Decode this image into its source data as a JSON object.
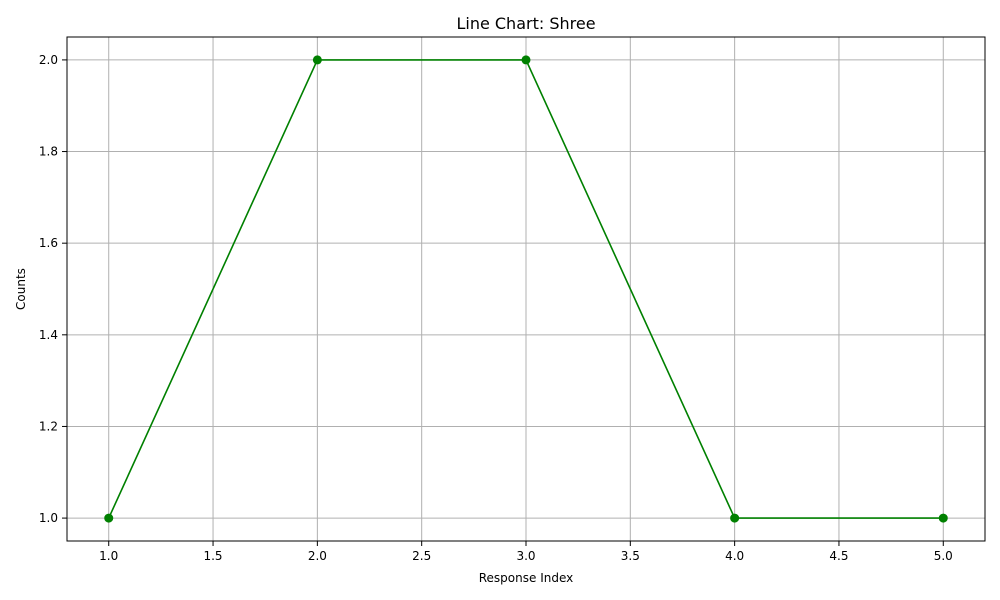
{
  "chart_data": {
    "type": "line",
    "title": "Line Chart: Shree",
    "xlabel": "Response Index",
    "ylabel": "Counts",
    "x": [
      1,
      2,
      3,
      4,
      5
    ],
    "series": [
      {
        "values": [
          1,
          2,
          2,
          1,
          1
        ],
        "color": "#008000",
        "marker": "circle"
      }
    ],
    "xlim": [
      0.8,
      5.2
    ],
    "ylim": [
      0.95,
      2.05
    ],
    "xticks": [
      1.0,
      1.5,
      2.0,
      2.5,
      3.0,
      3.5,
      4.0,
      4.5,
      5.0
    ],
    "xtick_labels": [
      "1.0",
      "1.5",
      "2.0",
      "2.5",
      "3.0",
      "3.5",
      "4.0",
      "4.5",
      "5.0"
    ],
    "yticks": [
      1.0,
      1.2,
      1.4,
      1.6,
      1.8,
      2.0
    ],
    "ytick_labels": [
      "1.0",
      "1.2",
      "1.4",
      "1.6",
      "1.8",
      "2.0"
    ],
    "grid": true,
    "legend": "none"
  }
}
